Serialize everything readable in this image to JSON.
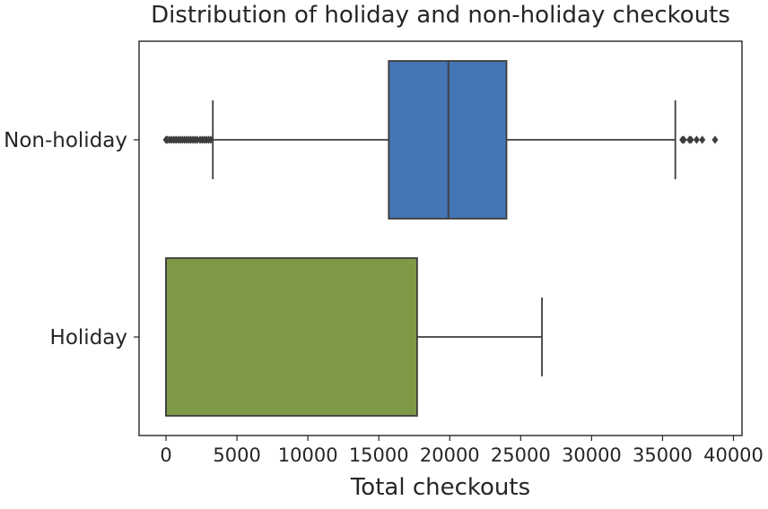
{
  "chart_data": {
    "type": "box",
    "orientation": "horizontal",
    "title": "Distribution of holiday and non-holiday checkouts",
    "xlabel": "Total checkouts",
    "ylabel": "",
    "xlim": [
      -1900,
      40600
    ],
    "xticks": [
      0,
      5000,
      10000,
      15000,
      20000,
      25000,
      30000,
      35000,
      40000
    ],
    "grid": false,
    "categories": [
      "Non-holiday",
      "Holiday"
    ],
    "boxes": [
      {
        "category": "Non-holiday",
        "color": "#4575b4",
        "whisker_low": 3300,
        "q1": 15700,
        "median": 19900,
        "q3": 24000,
        "whisker_high": 35900,
        "outliers": [
          0,
          100,
          250,
          400,
          550,
          700,
          850,
          1000,
          1150,
          1300,
          1450,
          1600,
          1750,
          1900,
          2050,
          2200,
          2400,
          2550,
          2700,
          2850,
          3000,
          3150,
          36400,
          36500,
          36900,
          37000,
          37400,
          37800,
          38700
        ]
      },
      {
        "category": "Holiday",
        "color": "#7f9a47",
        "whisker_low": 0,
        "q1": 0,
        "median": 0,
        "q3": 17700,
        "whisker_high": 26500,
        "outliers": []
      }
    ]
  }
}
